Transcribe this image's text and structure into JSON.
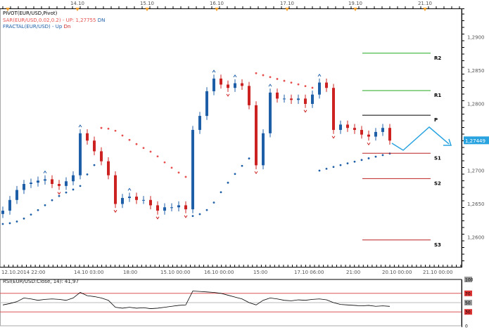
{
  "legend": {
    "pivot": "PIVOT(EUR/USD,Pivot)",
    "sar": "SAR(EUR/USD,0.02,0.2) -",
    "sar_up": "UP: 1,27755",
    "sar_dn": "DN",
    "fractal": "FRACTAL(EUR/USD) -",
    "fractal_up": "Up",
    "fractal_dn": "Dn",
    "rsi": "RSI(EUR/USD:Close, 14): 41,97"
  },
  "colors": {
    "bull": "#1f5fa8",
    "bear": "#cc2222",
    "sar_up": "#e85050",
    "sar_dn": "#1f5fa8",
    "accent": "#29a3e0",
    "r_line": "#22aa22",
    "s_line": "#bb2222",
    "p_line": "#000000"
  },
  "chart_data": {
    "type": "candlestick",
    "symbol": "EUR/USD",
    "top_date_labels": [
      "14.10",
      "15.10",
      "16.10",
      "17.10",
      "19.10",
      "21.10"
    ],
    "bottom_time_labels": [
      "12.10.2014 22:00",
      "14.10 03:00",
      "18:00",
      "15.10 00:00",
      "16.10 00:00",
      "15:00",
      "17.10 06:00",
      "21:00",
      "20.10 00:00",
      "21.10 00:00"
    ],
    "y_ticks": [
      "1,2900",
      "1,2850",
      "1,2800",
      "1,2700",
      "1,2650",
      "1,2600"
    ],
    "ylim": [
      1.256,
      1.294
    ],
    "last_price": "1,27449",
    "closes": [
      1.264,
      1.2656,
      1.2671,
      1.268,
      1.2682,
      1.2685,
      1.2687,
      1.268,
      1.2677,
      1.2684,
      1.2693,
      1.2756,
      1.2745,
      1.2729,
      1.2714,
      1.2693,
      1.265,
      1.2659,
      1.2661,
      1.2656,
      1.2656,
      1.2648,
      1.264,
      1.2645,
      1.2645,
      1.2648,
      1.2642,
      1.2761,
      1.2782,
      1.2819,
      1.2838,
      1.2829,
      1.2824,
      1.2831,
      1.2827,
      1.2798,
      1.2708,
      1.2756,
      1.2817,
      1.2808,
      1.2808,
      1.2806,
      1.2808,
      1.28,
      1.2814,
      1.2832,
      1.2824,
      1.2761,
      1.2769,
      1.2764,
      1.2761,
      1.2754,
      1.2751,
      1.2758,
      1.2764,
      1.2745
    ],
    "pivots": [
      {
        "label": "R2",
        "value": 1.2876,
        "kind": "r"
      },
      {
        "label": "R1",
        "value": 1.282,
        "kind": "r"
      },
      {
        "label": "P",
        "value": 1.2783,
        "kind": "p"
      },
      {
        "label": "S1",
        "value": 1.2726,
        "kind": "s"
      },
      {
        "label": "S2",
        "value": 1.2688,
        "kind": "s"
      },
      {
        "label": "S3",
        "value": 1.2596,
        "kind": "s"
      }
    ],
    "rsi": {
      "levels": [
        "100",
        "70",
        "50",
        "30",
        "0"
      ],
      "values": [
        45,
        48,
        52,
        60,
        58,
        55,
        57,
        58,
        57,
        55,
        60,
        72,
        65,
        63,
        60,
        55,
        40,
        38,
        40,
        38,
        39,
        37,
        38,
        40,
        42,
        44,
        45,
        75,
        74,
        73,
        72,
        70,
        66,
        62,
        58,
        50,
        45,
        55,
        60,
        58,
        55,
        54,
        56,
        55,
        57,
        58,
        56,
        50,
        46,
        45,
        44,
        43,
        44,
        42,
        43,
        41.97
      ]
    }
  }
}
